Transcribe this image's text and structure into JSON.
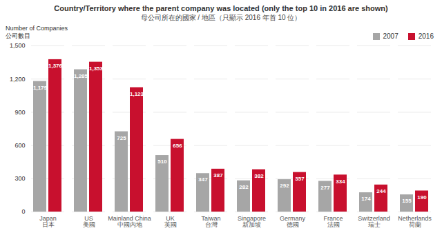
{
  "chart_data": {
    "type": "bar",
    "title": "Country/Territory where the parent company was located (only the top 10 in 2016 are shown)",
    "subtitle": "母公司所在的國家 / 地區（只顯示 2016 年首 10 位）",
    "ylabel": "Number of Companies\n公司數目",
    "categories": [
      "Japan\n日本",
      "US\n美國",
      "Mainland China\n中國內地",
      "UK\n英國",
      "Taiwan\n台灣",
      "Singapore\n新加坡",
      "Germany\n德國",
      "France\n法國",
      "Switzerland\n瑞士",
      "Netherlands\n荷蘭"
    ],
    "series": [
      {
        "name": "2007",
        "color": "#a6a6a6",
        "values": [
          1179,
          1285,
          725,
          510,
          347,
          282,
          292,
          277,
          174,
          155
        ],
        "value_labels": [
          "1,179",
          "1,285",
          "725",
          "510",
          "347",
          "282",
          "292",
          "277",
          "174",
          "155"
        ]
      },
      {
        "name": "2016",
        "color": "#c8102e",
        "values": [
          1376,
          1353,
          1123,
          656,
          387,
          382,
          357,
          334,
          244,
          190
        ],
        "value_labels": [
          "1,376",
          "1,353",
          "1,123",
          "656",
          "387",
          "382",
          "357",
          "334",
          "244",
          "190"
        ]
      }
    ],
    "ylim": [
      0,
      1500
    ],
    "yticks": [
      0,
      300,
      600,
      900,
      {
        "value": 1200,
        "label": "1,200"
      },
      {
        "value": 1500,
        "label": "1,500"
      }
    ],
    "grid": true,
    "legend": "top-right",
    "data_labels": true
  }
}
